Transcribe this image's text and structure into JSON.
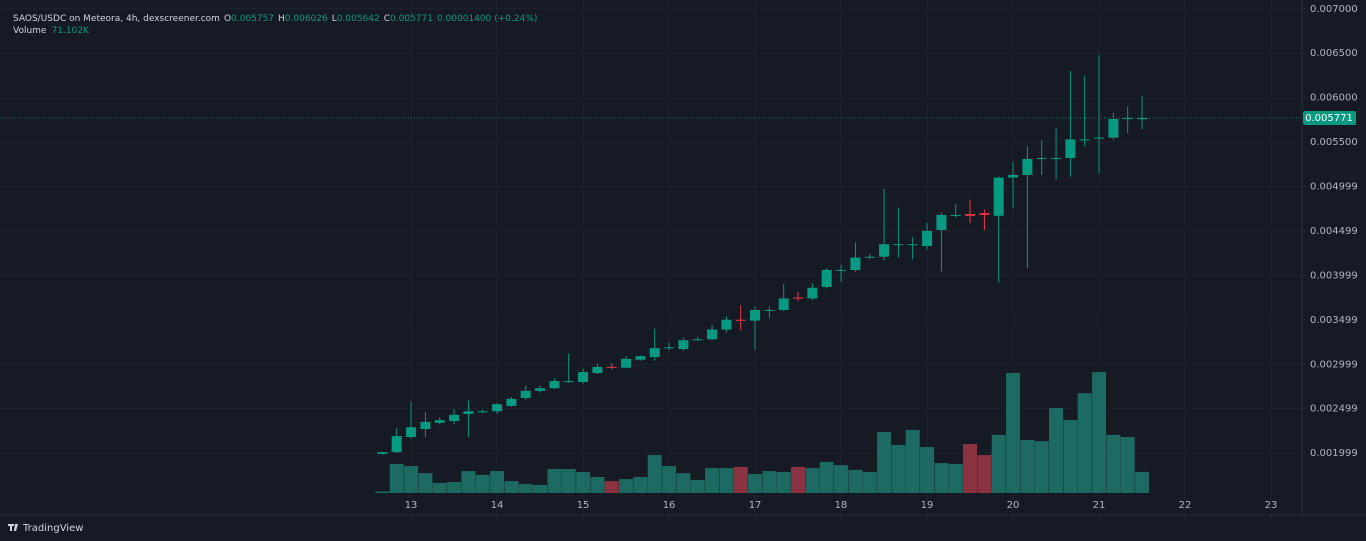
{
  "chart_data": {
    "type": "candlestick",
    "title": "SAOS/USDC on Meteora, 4h, dexscreener.com",
    "ohlc_labels": [
      "O",
      "H",
      "L",
      "C"
    ],
    "change": "0.00001400 (+0.24%)",
    "volume_name": "Volume",
    "volume_value_label": "71.102K",
    "branding": "TradingView",
    "x": [
      12.667,
      12.833,
      13,
      13.167,
      13.333,
      13.5,
      13.667,
      13.833,
      14,
      14.167,
      14.333,
      14.5,
      14.667,
      14.833,
      15,
      15.167,
      15.333,
      15.5,
      15.667,
      15.833,
      16,
      16.167,
      16.333,
      16.5,
      16.667,
      16.833,
      17,
      17.167,
      17.333,
      17.5,
      17.667,
      17.833,
      18,
      18.167,
      18.333,
      18.5,
      18.667,
      18.833,
      19,
      19.167,
      19.333,
      19.5,
      19.667,
      19.833,
      20,
      20.167,
      20.333,
      20.5,
      20.667,
      20.833,
      21,
      21.167,
      21.333,
      21.5
    ],
    "open": [
      0.00199,
      0.00201,
      0.00218,
      0.00227,
      0.00234,
      0.00236,
      0.00244,
      0.00246,
      0.00247,
      0.00253,
      0.00262,
      0.0027,
      0.00273,
      0.0028,
      0.0028,
      0.0029,
      0.00297,
      0.00296,
      0.00305,
      0.00308,
      0.00318,
      0.00317,
      0.00327,
      0.00328,
      0.00339,
      0.0035,
      0.00349,
      0.0036,
      0.00361,
      0.00375,
      0.00374,
      0.00387,
      0.00405,
      0.00406,
      0.0042,
      0.00421,
      0.00434,
      0.00434,
      0.00433,
      0.00451,
      0.00467,
      0.00469,
      0.0047,
      0.00467,
      0.0051,
      0.00513,
      0.00531,
      0.00531,
      0.00532,
      0.00552,
      0.00554,
      0.00555,
      0.00576,
      0.005757
    ],
    "high": [
      0.00201,
      0.00228,
      0.00258,
      0.00246,
      0.0024,
      0.00249,
      0.00259,
      0.00249,
      0.00256,
      0.00263,
      0.00276,
      0.00276,
      0.00284,
      0.00312,
      0.00295,
      0.00301,
      0.00301,
      0.00309,
      0.0031,
      0.0034,
      0.00324,
      0.0033,
      0.00331,
      0.00344,
      0.00354,
      0.00366,
      0.00365,
      0.00365,
      0.0039,
      0.00381,
      0.00391,
      0.00408,
      0.00412,
      0.00437,
      0.00424,
      0.00497,
      0.00476,
      0.00443,
      0.00459,
      0.0047,
      0.0048,
      0.00485,
      0.00474,
      0.00511,
      0.00528,
      0.00545,
      0.00552,
      0.00566,
      0.0063,
      0.00625,
      0.00648,
      0.00583,
      0.0059,
      0.006026
    ],
    "low": [
      0.00198,
      0.002,
      0.00216,
      0.00218,
      0.00232,
      0.00232,
      0.00218,
      0.00245,
      0.00244,
      0.00252,
      0.0026,
      0.00268,
      0.00272,
      0.00279,
      0.00278,
      0.00289,
      0.00294,
      0.00295,
      0.00304,
      0.00304,
      0.00316,
      0.00315,
      0.00326,
      0.00327,
      0.00336,
      0.00338,
      0.00316,
      0.00352,
      0.0036,
      0.00371,
      0.00372,
      0.00385,
      0.00392,
      0.00404,
      0.00418,
      0.00417,
      0.0042,
      0.00418,
      0.00429,
      0.00404,
      0.00465,
      0.00459,
      0.00451,
      0.00392,
      0.00475,
      0.00408,
      0.00513,
      0.00508,
      0.00511,
      0.00545,
      0.00515,
      0.00553,
      0.0056,
      0.005642
    ],
    "close": [
      0.00201,
      0.00219,
      0.00229,
      0.00235,
      0.00237,
      0.00243,
      0.00247,
      0.00247,
      0.00255,
      0.00261,
      0.0027,
      0.00273,
      0.00281,
      0.00281,
      0.00291,
      0.00297,
      0.00296,
      0.00306,
      0.00309,
      0.00318,
      0.00319,
      0.00327,
      0.00328,
      0.00339,
      0.0035,
      0.00349,
      0.00361,
      0.00361,
      0.00374,
      0.00374,
      0.00386,
      0.00406,
      0.00406,
      0.0042,
      0.00421,
      0.00435,
      0.00435,
      0.00435,
      0.0045,
      0.00468,
      0.00468,
      0.00467,
      0.00468,
      0.0051,
      0.00513,
      0.00531,
      0.00532,
      0.00532,
      0.00553,
      0.00553,
      0.00555,
      0.00576,
      0.00577,
      0.005771
    ],
    "volume": [
      5000,
      98000,
      91000,
      67000,
      34000,
      37000,
      74000,
      61000,
      74000,
      40000,
      30000,
      27000,
      81000,
      81000,
      71000,
      54000,
      40000,
      47000,
      54000,
      128000,
      91000,
      67000,
      44000,
      84000,
      84000,
      88000,
      64000,
      74000,
      71000,
      88000,
      84000,
      105000,
      94000,
      78000,
      71000,
      206000,
      162000,
      213000,
      155000,
      101000,
      98000,
      165000,
      128000,
      196000,
      405000,
      179000,
      175000,
      287000,
      246000,
      337000,
      408000,
      196000,
      189000,
      71102
    ],
    "xlim": [
      8.22,
      23.36
    ],
    "xticks": [
      13,
      14,
      15,
      16,
      17,
      18,
      19,
      20,
      21,
      22,
      23
    ],
    "ylim": [
      0.00155,
      0.00702
    ],
    "yticks": [
      {
        "value": 0.007,
        "label": "0.007000"
      },
      {
        "value": 0.0065,
        "label": "0.006500"
      },
      {
        "value": 0.006,
        "label": "0.006000"
      },
      {
        "value": 0.0055,
        "label": "0.005500"
      },
      0.004999,
      0.004499,
      0.003999,
      0.003499,
      0.002999,
      0.002499,
      0.001999
    ],
    "y2lim": [
      0,
      1640000
    ],
    "grid": true,
    "up_color": "#089981",
    "down_color": "#f23645",
    "volume_up_color": "#1c6a61",
    "volume_down_color": "#8c3341"
  }
}
